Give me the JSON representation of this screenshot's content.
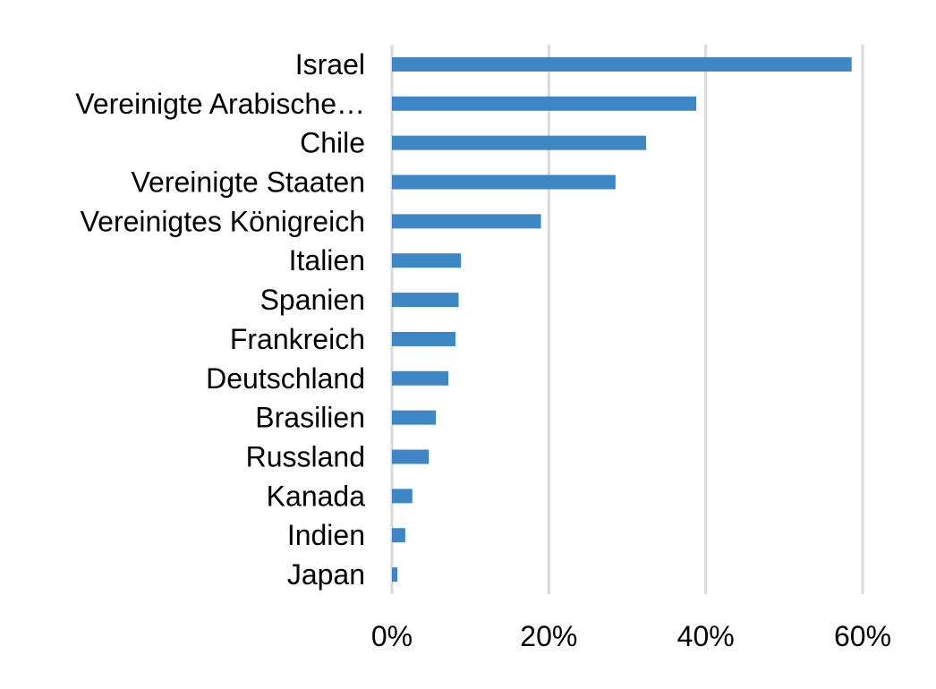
{
  "chart_data": {
    "type": "bar",
    "orientation": "horizontal",
    "categories": [
      "Israel",
      "Vereinigte Arabische…",
      "Chile",
      "Vereinigte Staaten",
      "Vereinigtes Königreich",
      "Italien",
      "Spanien",
      "Frankreich",
      "Deutschland",
      "Brasilien",
      "Russland",
      "Kanada",
      "Indien",
      "Japan"
    ],
    "values": [
      58.6,
      38.8,
      32.4,
      28.5,
      19.0,
      8.8,
      8.5,
      8.1,
      7.2,
      5.6,
      4.7,
      2.6,
      1.7,
      0.7
    ],
    "xlim": [
      0,
      60
    ],
    "xticks": [
      "0%",
      "20%",
      "40%",
      "60%"
    ],
    "bar_color": "#3d87c6",
    "grid": true,
    "grid_color": "#d9d9e0"
  }
}
